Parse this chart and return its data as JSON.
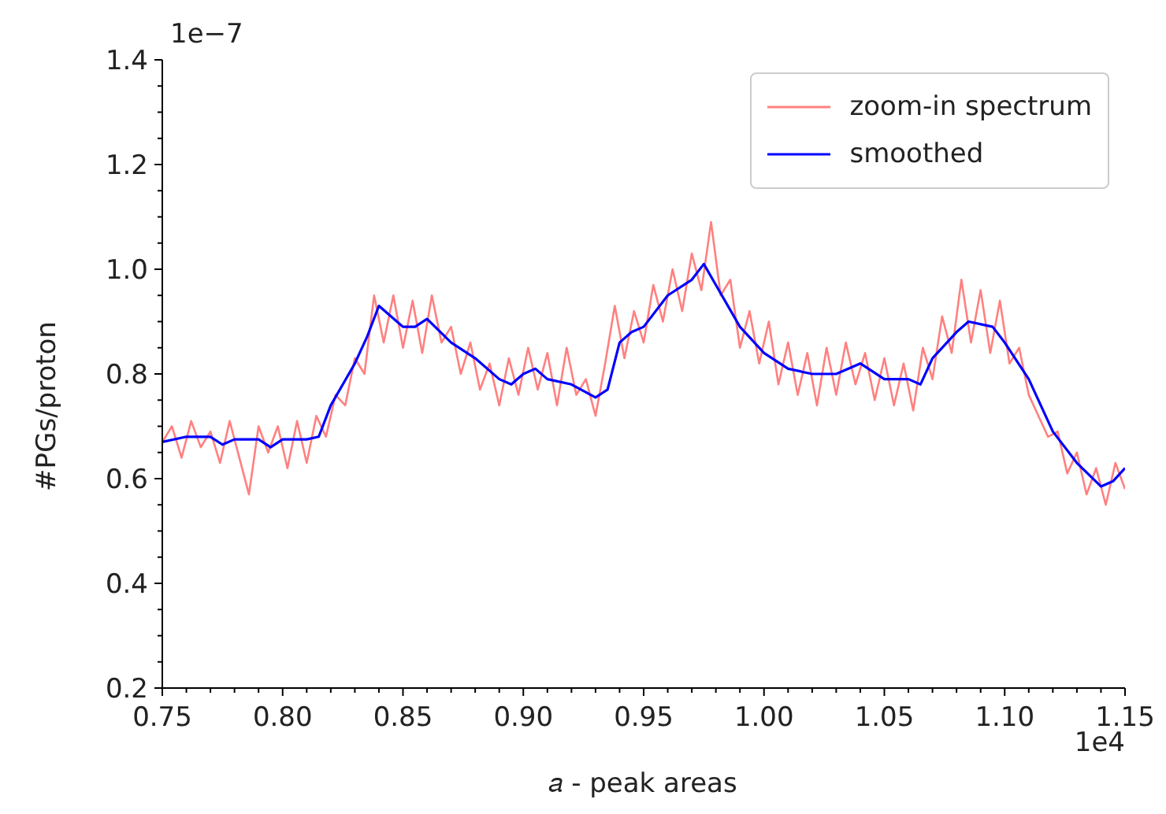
{
  "chart_data": {
    "type": "line",
    "xlabel": "𝑎 - peak areas",
    "ylabel": "#PGs/proton",
    "annotations": [
      "1e−7",
      "1e4"
    ],
    "legend": "top right",
    "xlim": [
      0.75,
      1.15
    ],
    "xticks": [
      0.75,
      {
        "value": 0.76,
        "label": null
      },
      {
        "value": 0.77,
        "label": null
      },
      {
        "value": 0.78,
        "label": null
      },
      {
        "value": 0.79,
        "label": null
      },
      {
        "value": 0.8,
        "label": "0.80"
      },
      {
        "value": 0.81,
        "label": null
      },
      {
        "value": 0.82,
        "label": null
      },
      {
        "value": 0.83,
        "label": null
      },
      {
        "value": 0.84,
        "label": null
      },
      0.85,
      {
        "value": 0.86,
        "label": null
      },
      {
        "value": 0.87,
        "label": null
      },
      {
        "value": 0.88,
        "label": null
      },
      {
        "value": 0.89,
        "label": null
      },
      {
        "value": 0.9,
        "label": "0.90"
      },
      {
        "value": 0.91,
        "label": null
      },
      {
        "value": 0.92,
        "label": null
      },
      {
        "value": 0.93,
        "label": null
      },
      {
        "value": 0.94,
        "label": null
      },
      0.95,
      {
        "value": 0.96,
        "label": null
      },
      {
        "value": 0.97,
        "label": null
      },
      {
        "value": 0.98,
        "label": null
      },
      {
        "value": 0.99,
        "label": null
      },
      {
        "value": 1.0,
        "label": "1.00"
      },
      {
        "value": 1.01,
        "label": null
      },
      {
        "value": 1.02,
        "label": null
      },
      {
        "value": 1.03,
        "label": null
      },
      {
        "value": 1.04,
        "label": null
      },
      1.05,
      {
        "value": 1.06,
        "label": null
      },
      {
        "value": 1.07,
        "label": null
      },
      {
        "value": 1.08,
        "label": null
      },
      {
        "value": 1.09,
        "label": null
      },
      {
        "value": 1.1,
        "label": "1.10"
      },
      {
        "value": 1.11,
        "label": null
      },
      {
        "value": 1.12,
        "label": null
      },
      {
        "value": 1.13,
        "label": null
      },
      {
        "value": 1.14,
        "label": null
      },
      1.15
    ],
    "ylim": [
      0.2,
      1.4
    ],
    "yticks": [
      0.2,
      {
        "value": 0.25,
        "label": null
      },
      {
        "value": 0.3,
        "label": null
      },
      {
        "value": 0.35,
        "label": null
      },
      0.4,
      {
        "value": 0.45,
        "label": null
      },
      {
        "value": 0.5,
        "label": null
      },
      {
        "value": 0.55,
        "label": null
      },
      0.6,
      {
        "value": 0.65,
        "label": null
      },
      {
        "value": 0.7,
        "label": null
      },
      {
        "value": 0.75,
        "label": null
      },
      0.8,
      {
        "value": 0.85,
        "label": null
      },
      {
        "value": 0.9,
        "label": null
      },
      {
        "value": 0.95,
        "label": null
      },
      {
        "value": 1.0,
        "label": "1.0"
      },
      {
        "value": 1.05,
        "label": null
      },
      {
        "value": 1.1,
        "label": null
      },
      {
        "value": 1.15,
        "label": null
      },
      1.2,
      {
        "value": 1.25,
        "label": null
      },
      {
        "value": 1.3,
        "label": null
      },
      {
        "value": 1.35,
        "label": null
      },
      1.4
    ],
    "series": [
      {
        "name": "zoom-in spectrum",
        "color": "#ff8080",
        "x": [
          0.75,
          0.754,
          0.758,
          0.762,
          0.766,
          0.77,
          0.774,
          0.778,
          0.782,
          0.786,
          0.79,
          0.794,
          0.798,
          0.802,
          0.806,
          0.81,
          0.814,
          0.818,
          0.822,
          0.826,
          0.83,
          0.834,
          0.838,
          0.842,
          0.846,
          0.85,
          0.854,
          0.858,
          0.862,
          0.866,
          0.87,
          0.874,
          0.878,
          0.882,
          0.886,
          0.89,
          0.894,
          0.898,
          0.902,
          0.906,
          0.91,
          0.914,
          0.918,
          0.922,
          0.926,
          0.93,
          0.934,
          0.938,
          0.942,
          0.946,
          0.95,
          0.954,
          0.958,
          0.962,
          0.966,
          0.97,
          0.974,
          0.978,
          0.982,
          0.986,
          0.99,
          0.994,
          0.998,
          1.002,
          1.006,
          1.01,
          1.014,
          1.018,
          1.022,
          1.026,
          1.03,
          1.034,
          1.038,
          1.042,
          1.046,
          1.05,
          1.054,
          1.058,
          1.062,
          1.066,
          1.07,
          1.074,
          1.078,
          1.082,
          1.086,
          1.09,
          1.094,
          1.098,
          1.102,
          1.106,
          1.11,
          1.114,
          1.118,
          1.122,
          1.126,
          1.13,
          1.134,
          1.138,
          1.142,
          1.146,
          1.15
        ],
        "values": [
          0.67,
          0.7,
          0.64,
          0.71,
          0.66,
          0.69,
          0.63,
          0.71,
          0.64,
          0.57,
          0.7,
          0.65,
          0.7,
          0.62,
          0.71,
          0.63,
          0.72,
          0.68,
          0.76,
          0.74,
          0.83,
          0.8,
          0.95,
          0.86,
          0.95,
          0.85,
          0.94,
          0.84,
          0.95,
          0.86,
          0.89,
          0.8,
          0.86,
          0.77,
          0.82,
          0.74,
          0.83,
          0.76,
          0.85,
          0.77,
          0.84,
          0.74,
          0.85,
          0.76,
          0.79,
          0.72,
          0.82,
          0.93,
          0.83,
          0.92,
          0.86,
          0.97,
          0.9,
          1.0,
          0.92,
          1.03,
          0.96,
          1.09,
          0.95,
          0.98,
          0.85,
          0.92,
          0.82,
          0.9,
          0.78,
          0.86,
          0.76,
          0.84,
          0.74,
          0.85,
          0.76,
          0.86,
          0.78,
          0.84,
          0.75,
          0.83,
          0.74,
          0.82,
          0.73,
          0.85,
          0.79,
          0.91,
          0.84,
          0.98,
          0.86,
          0.96,
          0.84,
          0.94,
          0.82,
          0.85,
          0.76,
          0.72,
          0.68,
          0.69,
          0.61,
          0.65,
          0.57,
          0.62,
          0.55,
          0.63,
          0.58
        ]
      },
      {
        "name": "smoothed",
        "color": "#0000ff",
        "x": [
          0.75,
          0.76,
          0.77,
          0.775,
          0.78,
          0.79,
          0.795,
          0.8,
          0.81,
          0.815,
          0.82,
          0.83,
          0.835,
          0.84,
          0.85,
          0.855,
          0.86,
          0.87,
          0.88,
          0.89,
          0.895,
          0.9,
          0.905,
          0.91,
          0.92,
          0.93,
          0.935,
          0.94,
          0.945,
          0.95,
          0.96,
          0.97,
          0.975,
          0.98,
          0.99,
          1.0,
          1.01,
          1.02,
          1.03,
          1.04,
          1.05,
          1.06,
          1.065,
          1.07,
          1.08,
          1.085,
          1.095,
          1.1,
          1.11,
          1.12,
          1.13,
          1.14,
          1.145,
          1.15
        ],
        "values": [
          0.67,
          0.68,
          0.68,
          0.665,
          0.675,
          0.675,
          0.66,
          0.675,
          0.675,
          0.68,
          0.74,
          0.82,
          0.87,
          0.93,
          0.89,
          0.89,
          0.905,
          0.86,
          0.83,
          0.79,
          0.78,
          0.8,
          0.81,
          0.79,
          0.78,
          0.755,
          0.77,
          0.86,
          0.88,
          0.89,
          0.95,
          0.98,
          1.01,
          0.97,
          0.89,
          0.84,
          0.81,
          0.8,
          0.8,
          0.82,
          0.79,
          0.79,
          0.78,
          0.83,
          0.88,
          0.9,
          0.89,
          0.86,
          0.79,
          0.69,
          0.63,
          0.585,
          0.595,
          0.62
        ]
      }
    ]
  }
}
